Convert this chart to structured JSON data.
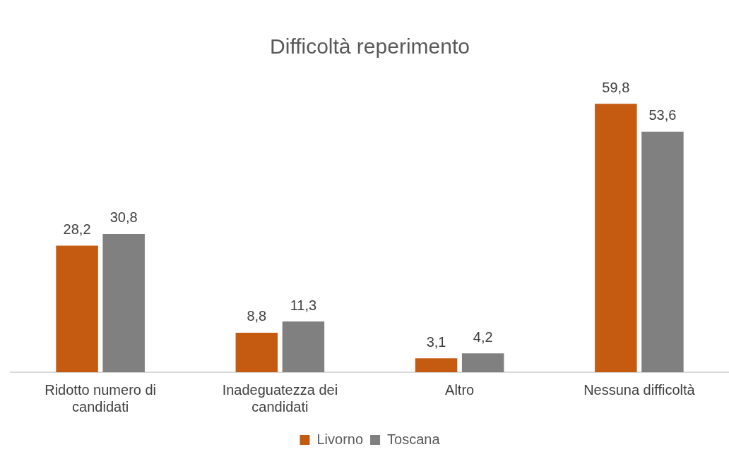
{
  "chart_data": {
    "type": "bar",
    "title": "Difficoltà reperimento",
    "categories": [
      "Ridotto numero di candidati",
      "Inadeguatezza dei candidati",
      "Altro",
      "Nessuna difficoltà"
    ],
    "series": [
      {
        "name": "Livorno",
        "color": "#c55a11",
        "values": [
          28.2,
          8.8,
          3.1,
          59.8
        ],
        "value_labels": [
          "28,2",
          "8,8",
          "3,1",
          "59,8"
        ]
      },
      {
        "name": "Toscana",
        "color": "#808080",
        "values": [
          30.8,
          11.3,
          4.2,
          53.6
        ],
        "value_labels": [
          "30,8",
          "11,3",
          "4,2",
          "53,6"
        ]
      }
    ],
    "legend": "bottom",
    "grid": false
  }
}
